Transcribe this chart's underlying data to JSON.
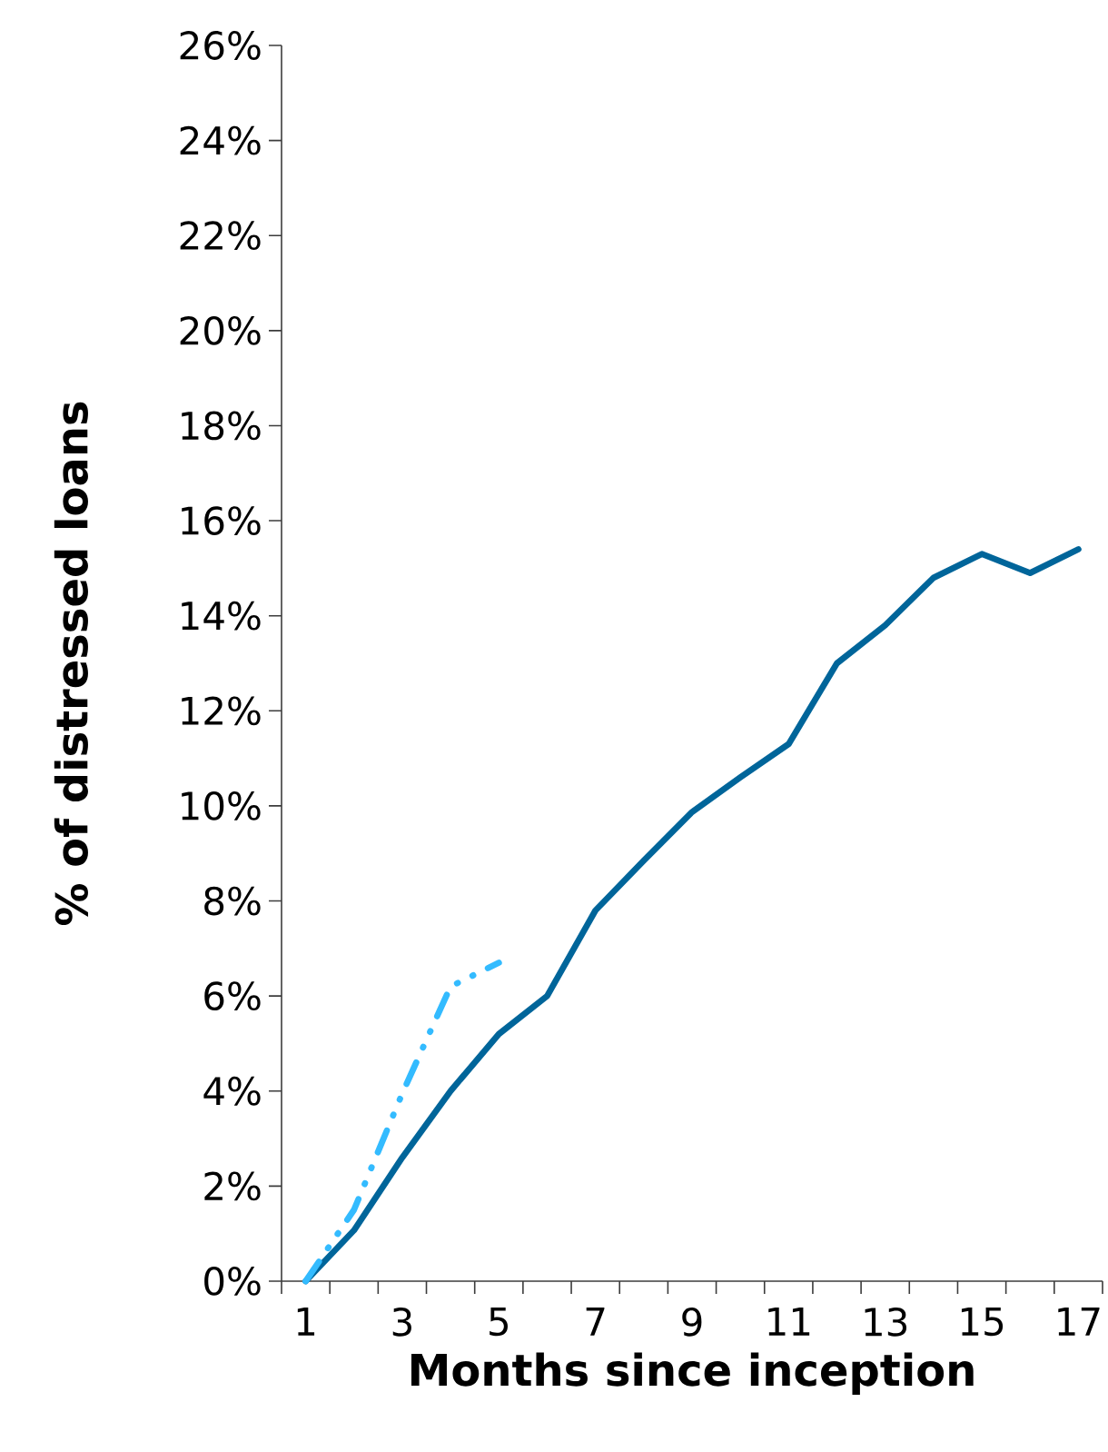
{
  "chart_data": {
    "type": "line",
    "xlabel": "Months since inception",
    "ylabel": "% of distressed loans",
    "categories": [
      "1",
      null,
      "3",
      null,
      "5",
      null,
      "7",
      null,
      "9",
      null,
      "11",
      null,
      "13",
      null,
      "15",
      null,
      "17"
    ],
    "series": [
      {
        "color": "#00659a",
        "line_style": "solid",
        "values": [
          0,
          1.07,
          2.6,
          4.0,
          5.2,
          6.0,
          7.8,
          8.85,
          9.87,
          10.6,
          11.3,
          13.0,
          13.8,
          14.8,
          15.3,
          14.9,
          15.4
        ]
      },
      {
        "color": "#33bbff",
        "line_style": "dashed",
        "values": [
          0,
          1.5,
          3.95,
          6.2,
          6.7,
          null,
          null,
          null,
          null,
          null,
          null,
          null,
          null,
          null,
          null,
          null,
          null
        ]
      }
    ],
    "ylim": [
      0,
      26
    ],
    "yticks": [
      {
        "value": 0,
        "label": "0%"
      },
      {
        "value": 2,
        "label": "2%"
      },
      {
        "value": 4,
        "label": "4%"
      },
      {
        "value": 6,
        "label": "6%"
      },
      {
        "value": 8,
        "label": "8%"
      },
      {
        "value": 10,
        "label": "10%"
      },
      {
        "value": 12,
        "label": "12%"
      },
      {
        "value": 14,
        "label": "14%"
      },
      {
        "value": 16,
        "label": "16%"
      },
      {
        "value": 18,
        "label": "18%"
      },
      {
        "value": 20,
        "label": "20%"
      },
      {
        "value": 22,
        "label": "22%"
      },
      {
        "value": 24,
        "label": "24%"
      },
      {
        "value": 26,
        "label": "26%"
      }
    ],
    "grid": false,
    "legend": false,
    "marker": "none"
  }
}
